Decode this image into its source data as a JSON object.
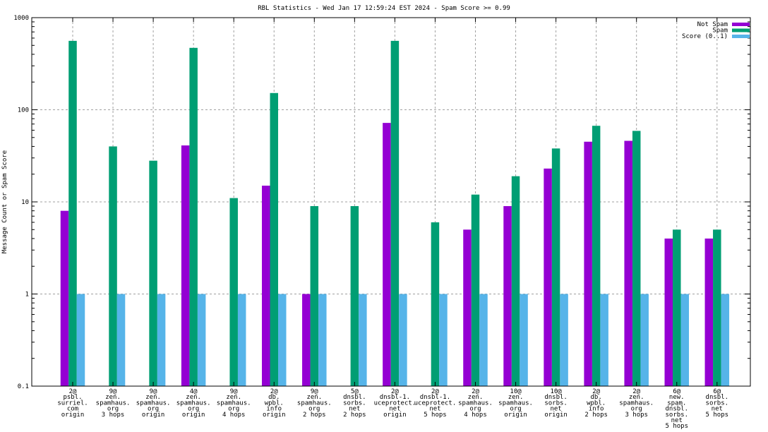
{
  "chart_data": {
    "type": "bar",
    "title": "RBL Statistics - Wed Jan 17 12:59:24 EST 2024 - Spam Score >= 0.99",
    "xlabel": "",
    "ylabel": "Message Count or Spam Score",
    "yscale": "log",
    "ylim": [
      0.1,
      1000
    ],
    "yticks": [
      "0.1",
      "1",
      "10",
      "100",
      "1000"
    ],
    "grid": true,
    "legend_position": "top-right",
    "categories": [
      [
        "2@",
        "psbl.",
        "surriel.",
        "com",
        "origin"
      ],
      [
        "9@",
        "zen.",
        "spamhaus.",
        "org",
        "3 hops"
      ],
      [
        "9@",
        "zen.",
        "spamhaus.",
        "org",
        "origin"
      ],
      [
        "4@",
        "zen.",
        "spamhaus.",
        "org",
        "origin"
      ],
      [
        "9@",
        "zen.",
        "spamhaus.",
        "org",
        "4 hops"
      ],
      [
        "2@",
        "db.",
        "wpbl.",
        "info",
        "origin"
      ],
      [
        "9@",
        "zen.",
        "spamhaus.",
        "org",
        "2 hops"
      ],
      [
        "5@",
        "dnsbl.",
        "sorbs.",
        "net",
        "2 hops"
      ],
      [
        "2@",
        "dnsbl-1.",
        "uceprotect.",
        "net",
        "origin"
      ],
      [
        "2@",
        "dnsbl-1.",
        "uceprotect.",
        "net",
        "5 hops"
      ],
      [
        "2@",
        "zen.",
        "spamhaus.",
        "org",
        "4 hops"
      ],
      [
        "10@",
        "zen.",
        "spamhaus.",
        "org",
        "origin"
      ],
      [
        "10@",
        "dnsbl.",
        "sorbs.",
        "net",
        "origin"
      ],
      [
        "2@",
        "db.",
        "wpbl.",
        "info",
        "2 hops"
      ],
      [
        "2@",
        "zen.",
        "spamhaus.",
        "org",
        "3 hops"
      ],
      [
        "6@",
        "new.",
        "spam.",
        "dnsbl.",
        "sorbs.",
        "net",
        "5 hops"
      ],
      [
        "6@",
        "dnsbl.",
        "sorbs.",
        "net",
        "5 hops"
      ]
    ],
    "series": [
      {
        "name": "Not Spam",
        "color": "#9400d3",
        "values": [
          8,
          0,
          0,
          41,
          0,
          15,
          1,
          0,
          72,
          0,
          5,
          9,
          23,
          45,
          46,
          4,
          4
        ]
      },
      {
        "name": "Spam",
        "color": "#009e73",
        "values": [
          560,
          40,
          28,
          470,
          11,
          152,
          9,
          9,
          560,
          6,
          12,
          19,
          38,
          67,
          59,
          5,
          5
        ]
      },
      {
        "name": "Score (0..1)",
        "color": "#56b4e9",
        "values": [
          1,
          1,
          1,
          1,
          1,
          1,
          1,
          1,
          1,
          1,
          1,
          1,
          1,
          1,
          1,
          1,
          1
        ]
      }
    ]
  }
}
